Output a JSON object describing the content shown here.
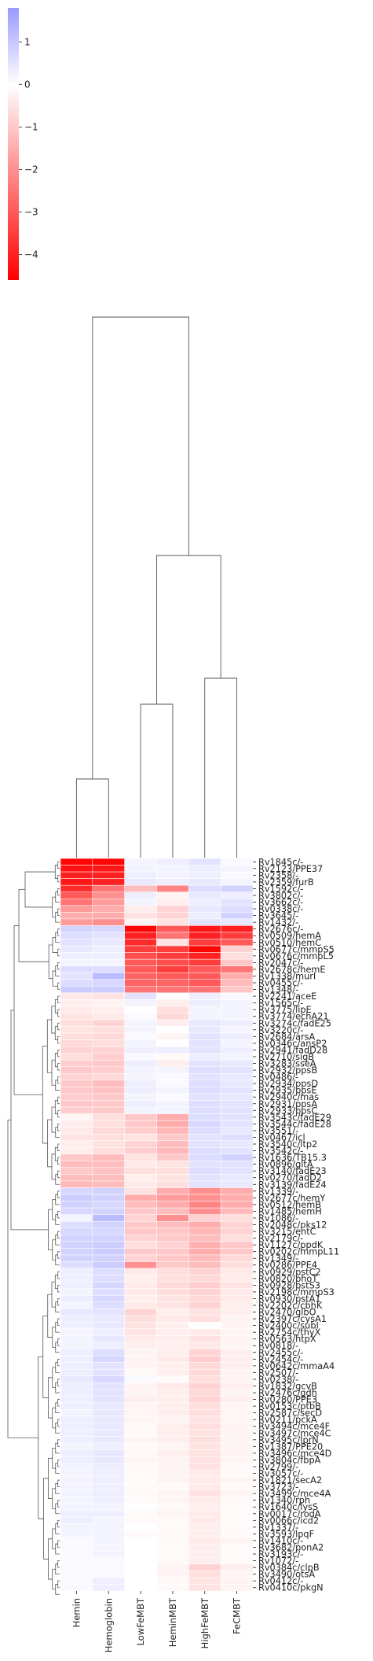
{
  "chart_data": {
    "type": "heatmap",
    "title": "",
    "columns": [
      "Hemin",
      "Hemoglobin",
      "LowFeMBT",
      "HeminMBT",
      "HighFeMBT",
      "FeCMBT"
    ],
    "rows": [
      {
        "label": "Rv1845c/-",
        "values": [
          -4.5,
          -4.5,
          0.2,
          0.3,
          0.5,
          0.1
        ]
      },
      {
        "label": "Rv2123/PPE37",
        "values": [
          -4.3,
          -4.2,
          0.2,
          0.2,
          0.3,
          0.2
        ]
      },
      {
        "label": "Rv2358/-",
        "values": [
          -4.0,
          -4.0,
          0.3,
          0.2,
          0.3,
          0.1
        ]
      },
      {
        "label": "Rv2359/furB",
        "values": [
          -4.2,
          -4.0,
          0.4,
          0.3,
          0.4,
          0.2
        ]
      },
      {
        "label": "Rv1592c/-",
        "values": [
          -3.8,
          -2.5,
          -1.2,
          -2.2,
          0.6,
          0.8
        ]
      },
      {
        "label": "Rv3802c/-",
        "values": [
          -3.0,
          -2.0,
          0.3,
          -0.2,
          0.4,
          0.3
        ]
      },
      {
        "label": "Rv3662c/-",
        "values": [
          -2.5,
          -1.8,
          0.2,
          -0.3,
          0.3,
          0.5
        ]
      },
      {
        "label": "Rv0338c/-",
        "values": [
          -1.8,
          -1.5,
          -0.3,
          -0.8,
          0.4,
          0.6
        ]
      },
      {
        "label": "Rv3645/-",
        "values": [
          -1.5,
          -1.5,
          -0.5,
          -0.8,
          0.3,
          0.8
        ]
      },
      {
        "label": "Rv1432/-",
        "values": [
          -1.8,
          -2.0,
          -0.2,
          -0.5,
          0.5,
          0.4
        ]
      },
      {
        "label": "Rv2676c/-",
        "values": [
          0.8,
          0.7,
          -4.5,
          -3.0,
          -4.2,
          -4.0
        ]
      },
      {
        "label": "Rv0509/hemA",
        "values": [
          0.6,
          0.5,
          -4.0,
          -2.5,
          -4.0,
          -3.5
        ]
      },
      {
        "label": "Rv0510/hemC",
        "values": [
          0.5,
          0.4,
          -3.8,
          -0.5,
          -3.5,
          -3.0
        ]
      },
      {
        "label": "Rv0677c/mmpS5",
        "values": [
          0.4,
          0.3,
          -3.5,
          -3.5,
          -4.5,
          -0.8
        ]
      },
      {
        "label": "Rv0676c/mmpL5",
        "values": [
          0.3,
          0.3,
          -3.2,
          -3.5,
          -4.0,
          -0.6
        ]
      },
      {
        "label": "Rv2047c/-",
        "values": [
          0.2,
          0.2,
          -3.0,
          -3.2,
          -3.5,
          -1.0
        ]
      },
      {
        "label": "Rv2678c/hemE",
        "values": [
          0.6,
          0.6,
          -3.0,
          -3.5,
          -3.0,
          -2.5
        ]
      },
      {
        "label": "Rv1338/murI",
        "values": [
          0.5,
          1.2,
          -2.8,
          -3.0,
          -3.0,
          -1.5
        ]
      },
      {
        "label": "Rv0455c/-",
        "values": [
          0.6,
          0.7,
          -2.8,
          -2.8,
          -3.0,
          -1.2
        ]
      },
      {
        "label": "Rv1348/-",
        "values": [
          0.9,
          0.9,
          -2.5,
          -2.5,
          -2.5,
          -1.0
        ]
      },
      {
        "label": "Rv2241/aceE",
        "values": [
          -0.4,
          -0.5,
          0.5,
          0.0,
          0.3,
          0.1
        ]
      },
      {
        "label": "Rv1565c/-",
        "values": [
          -0.3,
          -0.2,
          0.2,
          -0.3,
          0.3,
          0.2
        ]
      },
      {
        "label": "Rv3775/lipE",
        "values": [
          -0.4,
          -0.3,
          0.0,
          -0.6,
          0.2,
          0.2
        ]
      },
      {
        "label": "Rv3774/echA21",
        "values": [
          -0.5,
          -0.4,
          0.1,
          -0.7,
          0.2,
          0.2
        ]
      },
      {
        "label": "Rv3274c/fadE25",
        "values": [
          -0.6,
          -0.8,
          0.2,
          -0.3,
          0.4,
          0.3
        ]
      },
      {
        "label": "Rv3220c/-",
        "values": [
          -0.5,
          -0.6,
          0.2,
          0.0,
          0.4,
          0.2
        ]
      },
      {
        "label": "Rv2684/arsA",
        "values": [
          -0.6,
          -0.7,
          0.1,
          -0.2,
          0.5,
          0.3
        ]
      },
      {
        "label": "Rv0346c/ansP2",
        "values": [
          -0.7,
          -0.6,
          0.2,
          0.0,
          0.5,
          0.2
        ]
      },
      {
        "label": "Rv2941/fadD28",
        "values": [
          -0.8,
          -0.8,
          0.3,
          0.3,
          0.5,
          0.3
        ]
      },
      {
        "label": "Rv2710/sigB",
        "values": [
          -0.6,
          -0.9,
          0.1,
          -0.1,
          0.3,
          0.2
        ]
      },
      {
        "label": "Rv3283/sseA",
        "values": [
          -0.9,
          -1.0,
          0.3,
          -0.3,
          0.5,
          0.4
        ]
      },
      {
        "label": "Rv2932/ppsB",
        "values": [
          -1.0,
          -0.9,
          0.2,
          0.2,
          0.6,
          0.5
        ]
      },
      {
        "label": "Rv0486/-",
        "values": [
          -0.8,
          -0.7,
          0.2,
          0.1,
          0.5,
          0.4
        ]
      },
      {
        "label": "Rv2934/ppsD",
        "values": [
          -1.0,
          -1.2,
          0.3,
          0.1,
          0.6,
          0.4
        ]
      },
      {
        "label": "Rv2935/ppsE",
        "values": [
          -1.0,
          -1.1,
          0.3,
          0.2,
          0.6,
          0.5
        ]
      },
      {
        "label": "Rv2940c/mas",
        "values": [
          -0.9,
          -1.0,
          0.2,
          0.1,
          0.5,
          0.4
        ]
      },
      {
        "label": "Rv2931/ppsA",
        "values": [
          -1.0,
          -1.0,
          0.3,
          0.2,
          0.6,
          0.5
        ]
      },
      {
        "label": "Rv2933/ppsC",
        "values": [
          -0.9,
          -1.0,
          0.2,
          0.2,
          0.6,
          0.5
        ]
      },
      {
        "label": "Rv3543c/fadE29",
        "values": [
          -0.2,
          -0.6,
          -1.0,
          -1.5,
          0.6,
          0.5
        ]
      },
      {
        "label": "Rv3544c/fadE28",
        "values": [
          -0.3,
          -0.6,
          -1.0,
          -1.5,
          0.7,
          0.5
        ]
      },
      {
        "label": "Rv3551/-",
        "values": [
          -0.4,
          -0.7,
          -0.9,
          -1.3,
          0.6,
          0.4
        ]
      },
      {
        "label": "Rv0467/icl",
        "values": [
          -0.5,
          -0.6,
          -0.5,
          -1.0,
          0.5,
          0.6
        ]
      },
      {
        "label": "Rv3540c/ltp2",
        "values": [
          -0.3,
          -0.5,
          -0.8,
          -1.2,
          0.5,
          0.4
        ]
      },
      {
        "label": "Rv3542c/-",
        "values": [
          -0.3,
          -0.6,
          -0.9,
          -1.3,
          0.6,
          0.5
        ]
      },
      {
        "label": "Rv1636/TB15.3",
        "values": [
          -1.0,
          -1.2,
          -0.5,
          -1.0,
          0.6,
          0.8
        ]
      },
      {
        "label": "Rv0896/gltA",
        "values": [
          -1.2,
          -1.2,
          -0.4,
          -0.5,
          0.5,
          0.5
        ]
      },
      {
        "label": "Rv3140/fadE23",
        "values": [
          -1.0,
          -1.1,
          -0.6,
          -0.6,
          0.6,
          0.5
        ]
      },
      {
        "label": "Rv0270/fadD2",
        "values": [
          -1.2,
          -1.2,
          -0.3,
          -0.5,
          0.5,
          0.4
        ]
      },
      {
        "label": "Rv3139/fadE24",
        "values": [
          -1.3,
          -1.2,
          -0.4,
          -0.6,
          0.5,
          0.4
        ]
      },
      {
        "label": "Rv1339/-",
        "values": [
          0.7,
          0.8,
          -0.5,
          -1.5,
          -2.0,
          -1.5
        ]
      },
      {
        "label": "Rv2677c/hemY",
        "values": [
          0.9,
          0.8,
          -1.5,
          -1.8,
          -2.0,
          -1.5
        ]
      },
      {
        "label": "Rv0512/hemB",
        "values": [
          0.8,
          0.7,
          -1.2,
          -1.5,
          -2.2,
          -1.5
        ]
      },
      {
        "label": "Rv1485/hemH",
        "values": [
          0.7,
          0.8,
          -1.0,
          -1.2,
          -2.0,
          -1.2
        ]
      },
      {
        "label": "Rv1086/-",
        "values": [
          0.2,
          1.2,
          -0.8,
          -2.0,
          -0.8,
          -0.6
        ]
      },
      {
        "label": "Rv2048c/pks12",
        "values": [
          0.6,
          0.8,
          -1.0,
          -1.2,
          -1.5,
          -0.8
        ]
      },
      {
        "label": "Rv3215/entC",
        "values": [
          0.7,
          0.7,
          -1.0,
          -1.0,
          -1.3,
          -0.8
        ]
      },
      {
        "label": "Rv2179c/-",
        "values": [
          0.8,
          0.8,
          -0.8,
          -1.0,
          -1.2,
          -0.6
        ]
      },
      {
        "label": "Rv1127c/ppdK",
        "values": [
          0.8,
          0.9,
          -0.6,
          -0.8,
          -1.4,
          -1.0
        ]
      },
      {
        "label": "Rv0202c/mmpL11",
        "values": [
          0.8,
          0.9,
          -1.0,
          -1.0,
          -1.5,
          -1.0
        ]
      },
      {
        "label": "Rv1349/-",
        "values": [
          0.8,
          0.8,
          -0.8,
          -1.0,
          -1.2,
          -0.7
        ]
      },
      {
        "label": "Rv0286/PPE4",
        "values": [
          0.6,
          0.9,
          -2.0,
          -1.0,
          -1.2,
          -0.6
        ]
      },
      {
        "label": "Rv0929/pstC2",
        "values": [
          0.3,
          0.6,
          -0.4,
          -0.6,
          -0.8,
          -0.4
        ]
      },
      {
        "label": "Rv0820/phoT",
        "values": [
          0.3,
          0.6,
          -0.3,
          -0.6,
          -0.7,
          -0.4
        ]
      },
      {
        "label": "Rv0928/pstS3",
        "values": [
          0.3,
          0.7,
          -0.4,
          -0.7,
          -0.9,
          -0.5
        ]
      },
      {
        "label": "Rv2198c/mmpS3",
        "values": [
          0.2,
          0.6,
          -0.4,
          -0.6,
          -0.8,
          -0.4
        ]
      },
      {
        "label": "Rv0930/pstA1",
        "values": [
          0.3,
          0.7,
          -0.3,
          -0.5,
          -0.7,
          -0.4
        ]
      },
      {
        "label": "Rv2202c/cbhK",
        "values": [
          0.2,
          0.6,
          -0.4,
          -0.5,
          -0.8,
          -0.3
        ]
      },
      {
        "label": "Rv2470/glbO",
        "values": [
          0.4,
          0.5,
          -0.8,
          -0.3,
          -0.5,
          -0.3
        ]
      },
      {
        "label": "Rv2397c/cysA1",
        "values": [
          0.3,
          0.4,
          -0.6,
          -0.4,
          -0.6,
          -0.2
        ]
      },
      {
        "label": "Rv2400c/subI",
        "values": [
          0.3,
          0.4,
          -0.5,
          -0.3,
          0.0,
          -0.2
        ]
      },
      {
        "label": "Rv2754c/thyX",
        "values": [
          0.2,
          0.3,
          -0.5,
          -0.3,
          -0.4,
          -0.2
        ]
      },
      {
        "label": "Rv0563/htpX",
        "values": [
          0.2,
          0.4,
          -0.4,
          -0.3,
          -0.5,
          -0.2
        ]
      },
      {
        "label": "Rv0818/-",
        "values": [
          0.2,
          0.3,
          -0.3,
          -0.3,
          -0.4,
          -0.2
        ]
      },
      {
        "label": "Rv2455c/-",
        "values": [
          0.3,
          0.6,
          -0.2,
          -0.3,
          -0.8,
          -0.3
        ]
      },
      {
        "label": "Rv2454c/-",
        "values": [
          0.3,
          0.7,
          -0.2,
          -0.4,
          -0.9,
          -0.3
        ]
      },
      {
        "label": "Rv0642c/mmaA4",
        "values": [
          0.3,
          0.5,
          -0.2,
          -0.3,
          -0.7,
          -0.3
        ]
      },
      {
        "label": "Rv2507/-",
        "values": [
          0.3,
          0.5,
          -0.1,
          -0.3,
          -0.7,
          -0.2
        ]
      },
      {
        "label": "Rv0238/-",
        "values": [
          0.4,
          0.7,
          0.1,
          -0.1,
          -0.6,
          -0.2
        ]
      },
      {
        "label": "Rv1832/gcvB",
        "values": [
          0.3,
          0.5,
          -0.2,
          -0.4,
          -0.8,
          -0.3
        ]
      },
      {
        "label": "Rv2476c/gdh",
        "values": [
          0.3,
          0.5,
          -0.2,
          -0.3,
          -0.7,
          -0.2
        ]
      },
      {
        "label": "Rv0280/PPE3",
        "values": [
          0.3,
          0.5,
          -0.3,
          -0.3,
          -0.8,
          -0.3
        ]
      },
      {
        "label": "Rv0153c/ptbB",
        "values": [
          0.3,
          0.4,
          -0.2,
          -0.3,
          -0.6,
          -0.2
        ]
      },
      {
        "label": "Rv2587c/secD",
        "values": [
          0.2,
          0.4,
          -0.2,
          -0.3,
          -0.6,
          -0.2
        ]
      },
      {
        "label": "Rv0211/pckA",
        "values": [
          0.3,
          0.4,
          -0.2,
          -0.2,
          -0.5,
          -0.2
        ]
      },
      {
        "label": "Rv3494c/mce4F",
        "values": [
          0.3,
          0.4,
          -0.1,
          -0.3,
          -0.6,
          -0.2
        ]
      },
      {
        "label": "Rv3497c/mce4C",
        "values": [
          0.3,
          0.4,
          -0.1,
          -0.3,
          -0.5,
          -0.2
        ]
      },
      {
        "label": "Rv3495c/lprN",
        "values": [
          0.3,
          0.4,
          -0.2,
          -0.3,
          -0.6,
          -0.2
        ]
      },
      {
        "label": "Rv1387/PPE20",
        "values": [
          0.2,
          0.3,
          -0.1,
          -0.2,
          -0.5,
          -0.2
        ]
      },
      {
        "label": "Rv3496c/mce4D",
        "values": [
          0.3,
          0.4,
          -0.1,
          -0.3,
          -0.5,
          -0.2
        ]
      },
      {
        "label": "Rv3804c/fbpA",
        "values": [
          0.3,
          0.4,
          -0.2,
          -0.2,
          -0.5,
          -0.2
        ]
      },
      {
        "label": "Rv2799/-",
        "values": [
          0.2,
          0.3,
          -0.1,
          -0.2,
          -0.5,
          -0.1
        ]
      },
      {
        "label": "Rv3057c/-",
        "values": [
          0.2,
          0.3,
          -0.1,
          -0.2,
          -0.4,
          -0.1
        ]
      },
      {
        "label": "Rv1821/secA2",
        "values": [
          0.2,
          0.3,
          -0.1,
          -0.2,
          -0.4,
          -0.2
        ]
      },
      {
        "label": "Rv3723/-",
        "values": [
          0.2,
          0.3,
          -0.1,
          -0.1,
          -0.4,
          -0.1
        ]
      },
      {
        "label": "Rv3499c/mce4A",
        "values": [
          0.2,
          0.3,
          -0.1,
          -0.2,
          -0.5,
          -0.2
        ]
      },
      {
        "label": "Rv1340/rph",
        "values": [
          0.2,
          0.3,
          -0.1,
          -0.2,
          -0.4,
          -0.1
        ]
      },
      {
        "label": "Rv1640c/lysS",
        "values": [
          0.2,
          0.2,
          0.0,
          -0.1,
          -0.3,
          -0.1
        ]
      },
      {
        "label": "Rv0017c/rodA",
        "values": [
          0.3,
          0.3,
          -0.1,
          -0.2,
          -0.4,
          -0.1
        ]
      },
      {
        "label": "Rv0066c/icd2",
        "values": [
          0.3,
          0.2,
          -0.1,
          -0.1,
          -0.4,
          -0.1
        ]
      },
      {
        "label": "Rv1337/-",
        "values": [
          0.2,
          0.2,
          0.0,
          -0.1,
          -0.3,
          -0.1
        ]
      },
      {
        "label": "Rv3593/lpqF",
        "values": [
          0.2,
          0.2,
          -0.1,
          -0.1,
          -0.3,
          -0.1
        ]
      },
      {
        "label": "Rv1410c/-",
        "values": [
          0.1,
          0.2,
          0.0,
          -0.1,
          -0.4,
          -0.2
        ]
      },
      {
        "label": "Rv3682/ponA2",
        "values": [
          0.1,
          0.2,
          0.0,
          -0.1,
          -0.3,
          -0.1
        ]
      },
      {
        "label": "Rv3193c/-",
        "values": [
          0.1,
          0.2,
          0.0,
          -0.1,
          -0.3,
          -0.1
        ]
      },
      {
        "label": "Rv1072/-",
        "values": [
          0.1,
          0.1,
          0.0,
          -0.1,
          -0.3,
          -0.1
        ]
      },
      {
        "label": "Rv0384c/clpB",
        "values": [
          0.1,
          0.1,
          0.0,
          -0.2,
          -0.8,
          -0.3
        ]
      },
      {
        "label": "Rv3490/otsA",
        "values": [
          0.1,
          0.1,
          0.0,
          -0.2,
          -0.6,
          -0.2
        ]
      },
      {
        "label": "Rv0412c/-",
        "values": [
          0.1,
          0.3,
          0.0,
          -0.1,
          -0.5,
          -0.2
        ]
      },
      {
        "label": "Rv0410c/pkgN",
        "values": [
          0.1,
          0.3,
          0.0,
          -0.1,
          -0.5,
          -0.2
        ]
      }
    ],
    "colorbar": {
      "min": -4.6,
      "max": 1.8,
      "ticks": [
        1,
        0,
        -1,
        -2,
        -3,
        -4
      ],
      "tick_labels": [
        "1",
        "0",
        "−1",
        "−2",
        "−3",
        "−4"
      ],
      "low_color": "#ff0000",
      "mid_color": "#ffffff",
      "high_color": "#9999ff"
    },
    "dendrogram_color": "#555555",
    "grid": false,
    "legend": "colorbar top-left"
  }
}
